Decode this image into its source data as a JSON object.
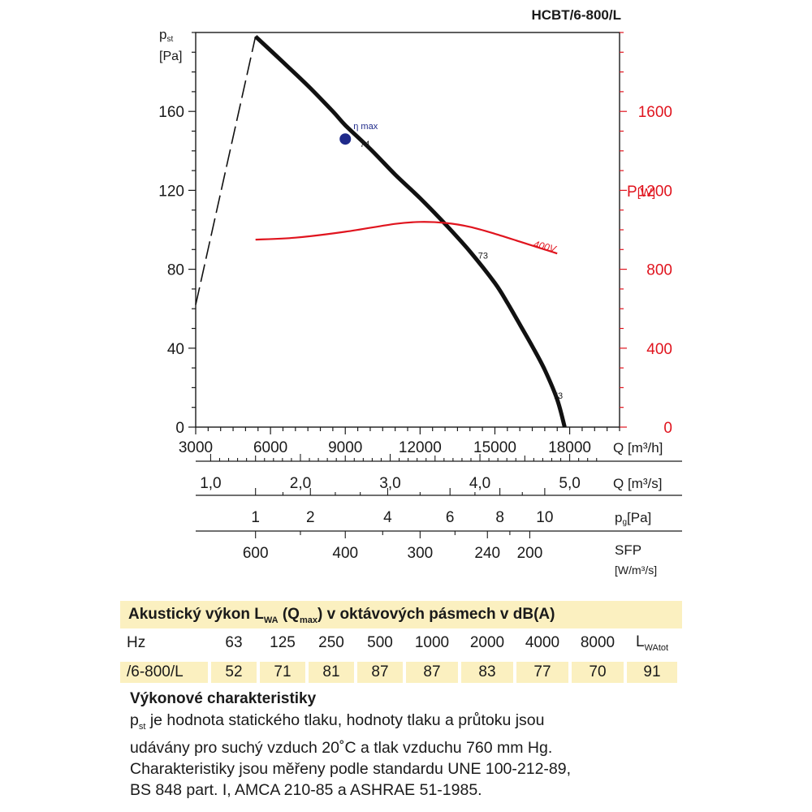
{
  "chart_data": {
    "type": "line",
    "title": "HCBT/6-800/L",
    "left_axis": {
      "label_main": "p",
      "label_sub": "st",
      "unit": "[Pa]",
      "min": 0,
      "max": 200,
      "ticks": [
        "0",
        "40",
        "80",
        "120",
        "160"
      ]
    },
    "right_axis": {
      "label_main": "P",
      "unit": "[W]",
      "min": 0,
      "max": 2000,
      "ticks": [
        "0",
        "400",
        "800",
        "1200",
        "1600"
      ],
      "color": "#e0141e"
    },
    "x_axis": {
      "unit": "Q [m³/h]",
      "min": 3000,
      "max": 20000,
      "ticks": [
        "3000",
        "6000",
        "9000",
        "12000",
        "15000",
        "18000"
      ]
    },
    "secondary_scales": [
      {
        "unit": "Q [m³/s]",
        "ticks": [
          "1,0",
          "2,0",
          "3,0",
          "4,0",
          "5,0"
        ]
      },
      {
        "unit_main": "p",
        "unit_sub": "g",
        "unit_rest": "[Pa]",
        "ticks": [
          "1",
          "2",
          "4",
          "6",
          "8",
          "10"
        ]
      },
      {
        "unit_line1": "SFP",
        "unit_line2": "[W/m³/s]",
        "ticks": [
          "600",
          "400",
          "300",
          "240",
          "200"
        ]
      }
    ],
    "series": [
      {
        "name": "",
        "kind": "pressure",
        "color": "#111111",
        "x": [
          5400,
          6500,
          7500,
          8500,
          9000,
          10000,
          11000,
          12000,
          13000,
          14000,
          15000,
          15500,
          16000,
          16500,
          17000,
          17500,
          17800
        ],
        "y": [
          198,
          185,
          173,
          160,
          153,
          141,
          128,
          116,
          103,
          89,
          73,
          63,
          52,
          41,
          29,
          14,
          0
        ]
      },
      {
        "name": "",
        "kind": "stall",
        "color": "#111111",
        "style": "dashed",
        "x": [
          3000,
          5400
        ],
        "y": [
          62,
          198
        ]
      },
      {
        "name": "400V",
        "kind": "power",
        "color": "#e0141e",
        "x": [
          5400,
          7000,
          9000,
          11000,
          12000,
          13000,
          14000,
          15000,
          16000,
          17000,
          17500
        ],
        "y_power": [
          950,
          960,
          990,
          1030,
          1040,
          1035,
          1015,
          980,
          940,
          900,
          880
        ]
      }
    ],
    "points": [
      {
        "label": "η max",
        "value_label": "74",
        "x": 9000,
        "y": 146,
        "color": "#1f2a8a"
      }
    ],
    "annotations": [
      {
        "text": "73",
        "x": 14000,
        "y": 87
      },
      {
        "text": "73",
        "x": 17000,
        "y": 16
      }
    ],
    "grid": false
  },
  "acoustic": {
    "title_main": "Akustický výkon L",
    "title_sub1": "WA",
    "title_mid": " (Q",
    "title_sub2": "max",
    "title_end": ") v oktávových pásmech v dB(A)",
    "header_label": "Hz",
    "bands": [
      "63",
      "125",
      "250",
      "500",
      "1000",
      "2000",
      "4000",
      "8000"
    ],
    "total_main": "L",
    "total_sub": "WAtot",
    "row_label": "/6-800/L",
    "values": [
      "52",
      "71",
      "81",
      "87",
      "87",
      "83",
      "77",
      "70"
    ],
    "total_value": "91"
  },
  "notes": {
    "heading": "Výkonové charakteristiky",
    "p_main": "p",
    "p_sub": "st",
    "line1": " je hodnota statického tlaku, hodnoty tlaku a průtoku jsou",
    "line2": "udávány pro suchý vzduch 20˚C a tlak vzduchu 760 mm Hg.",
    "line3": "Charakteristiky jsou měřeny podle standardu UNE 100-212-89,",
    "line4": "BS 848 part. I, AMCA 210-85 a ASHRAE 51-1985."
  }
}
